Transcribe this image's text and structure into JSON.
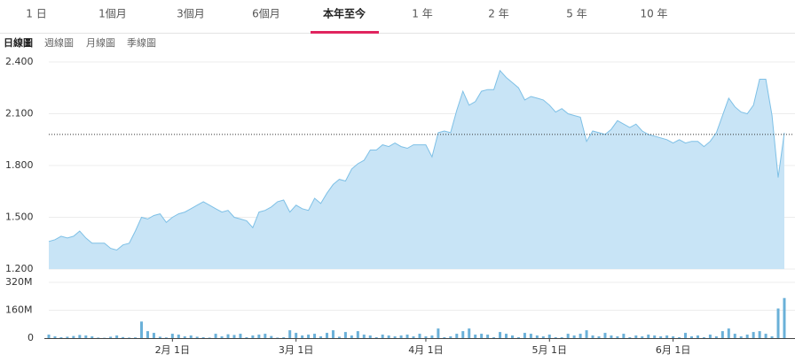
{
  "tabs": {
    "items": [
      "1 日",
      "1個月",
      "3個月",
      "6個月",
      "本年至今",
      "1 年",
      "2 年",
      "5 年",
      "10 年"
    ],
    "selected": 4
  },
  "chart_tabs": {
    "items": [
      "日線圖",
      "週線圖",
      "月線圖",
      "季線圖"
    ],
    "selected": 0
  },
  "chart_data": [
    {
      "type": "area",
      "color": "#7ec0e6",
      "fill": "#c8e4f6",
      "ylim": [
        1.2,
        2.4
      ],
      "yticks": [
        {
          "value": 1.2,
          "label": "1.200"
        },
        {
          "value": 1.5,
          "label": "1.500"
        },
        {
          "value": 1.8,
          "label": "1.800"
        },
        {
          "value": 2.1,
          "label": "2.100"
        },
        {
          "value": 2.4,
          "label": "2.400"
        }
      ],
      "reference_line": 1.98,
      "grid": true,
      "values": [
        1.36,
        1.37,
        1.39,
        1.38,
        1.39,
        1.42,
        1.38,
        1.35,
        1.35,
        1.35,
        1.32,
        1.31,
        1.34,
        1.35,
        1.42,
        1.5,
        1.49,
        1.51,
        1.52,
        1.47,
        1.5,
        1.52,
        1.53,
        1.55,
        1.57,
        1.59,
        1.57,
        1.55,
        1.53,
        1.54,
        1.5,
        1.49,
        1.48,
        1.44,
        1.53,
        1.54,
        1.56,
        1.59,
        1.6,
        1.53,
        1.57,
        1.55,
        1.54,
        1.61,
        1.58,
        1.64,
        1.69,
        1.72,
        1.71,
        1.78,
        1.81,
        1.83,
        1.89,
        1.89,
        1.92,
        1.91,
        1.93,
        1.91,
        1.9,
        1.92,
        1.92,
        1.92,
        1.85,
        1.99,
        2.0,
        1.99,
        2.12,
        2.23,
        2.15,
        2.17,
        2.23,
        2.24,
        2.24,
        2.35,
        2.31,
        2.28,
        2.25,
        2.18,
        2.2,
        2.19,
        2.18,
        2.15,
        2.11,
        2.13,
        2.1,
        2.09,
        2.08,
        1.94,
        2.0,
        1.99,
        1.98,
        2.01,
        2.06,
        2.04,
        2.02,
        2.04,
        2.0,
        1.98,
        1.97,
        1.96,
        1.95,
        1.93,
        1.95,
        1.93,
        1.94,
        1.94,
        1.91,
        1.94,
        1.99,
        2.09,
        2.19,
        2.14,
        2.11,
        2.1,
        2.15,
        2.3,
        2.3,
        2.09,
        1.73,
        1.99
      ]
    },
    {
      "type": "bar",
      "color": "#6ab0d8",
      "ylim": [
        0,
        320
      ],
      "yticks": [
        0,
        {
          "value": 160,
          "label": "160M"
        },
        {
          "value": 320,
          "label": "320M"
        }
      ],
      "grid": true,
      "categories": [
        null,
        null,
        null,
        null,
        null,
        null,
        null,
        null,
        null,
        null,
        null,
        null,
        null,
        null,
        null,
        null,
        null,
        null,
        null,
        null,
        "2月 1日",
        null,
        null,
        null,
        null,
        null,
        null,
        null,
        null,
        null,
        null,
        null,
        null,
        null,
        null,
        null,
        null,
        null,
        null,
        null,
        "3月 1日",
        null,
        null,
        null,
        null,
        null,
        null,
        null,
        null,
        null,
        null,
        null,
        null,
        null,
        null,
        null,
        null,
        null,
        null,
        null,
        null,
        "4月 1日",
        null,
        null,
        null,
        null,
        null,
        null,
        null,
        null,
        null,
        null,
        null,
        null,
        null,
        null,
        null,
        null,
        null,
        null,
        null,
        "5月 1日",
        null,
        null,
        null,
        null,
        null,
        null,
        null,
        null,
        null,
        null,
        null,
        null,
        null,
        null,
        null,
        null,
        null,
        null,
        null,
        "6月 1日",
        null,
        null,
        null,
        null,
        null,
        null,
        null,
        null,
        null,
        null,
        null,
        null,
        null,
        null,
        null,
        null,
        null,
        null
      ],
      "values": [
        20,
        10,
        5,
        8,
        12,
        18,
        15,
        10,
        3,
        2,
        8,
        15,
        6,
        3,
        4,
        95,
        40,
        30,
        8,
        4,
        25,
        20,
        10,
        15,
        8,
        5,
        3,
        25,
        10,
        22,
        18,
        25,
        5,
        15,
        20,
        25,
        12,
        3,
        5,
        45,
        30,
        15,
        20,
        25,
        10,
        30,
        45,
        8,
        35,
        15,
        40,
        20,
        15,
        5,
        20,
        15,
        10,
        15,
        20,
        10,
        25,
        10,
        15,
        55,
        5,
        10,
        25,
        40,
        55,
        20,
        25,
        20,
        5,
        35,
        25,
        15,
        5,
        30,
        25,
        15,
        10,
        20,
        5,
        5,
        25,
        15,
        25,
        45,
        15,
        10,
        30,
        15,
        10,
        25,
        5,
        15,
        10,
        20,
        15,
        10,
        15,
        10,
        5,
        30,
        10,
        15,
        5,
        20,
        10,
        40,
        55,
        25,
        10,
        20,
        35,
        40,
        25,
        10,
        170,
        230
      ]
    }
  ]
}
